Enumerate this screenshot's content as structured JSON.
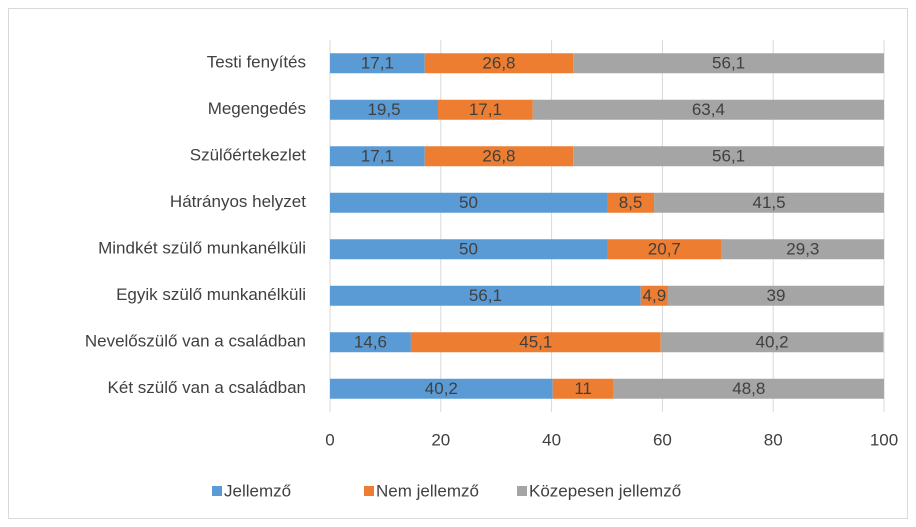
{
  "chart_data": {
    "type": "stacked_bar_horizontal",
    "categories": [
      "Testi fenyítés",
      "Megengedés",
      "Szülőértekezlet",
      "Hátrányos helyzet",
      "Mindkét szülő munkanélküli",
      "Egyik szülő munkanélküli",
      "Nevelőszülő van a családban",
      "Két szülő van a családban"
    ],
    "series": [
      {
        "name": "Jellemző",
        "color": "#5b9bd5",
        "values": [
          17.1,
          19.5,
          17.1,
          50,
          50,
          56.1,
          14.6,
          40.2
        ],
        "value_labels": [
          "17,1",
          "19,5",
          "17,1",
          "50",
          "50",
          "56,1",
          "14,6",
          "40,2"
        ]
      },
      {
        "name": "Nem jellemző",
        "color": "#ed7d31",
        "values": [
          26.8,
          17.1,
          26.8,
          8.5,
          20.7,
          4.9,
          45.1,
          11
        ],
        "value_labels": [
          "26,8",
          "17,1",
          "26,8",
          "8,5",
          "20,7",
          "4,9",
          "45,1",
          "11"
        ]
      },
      {
        "name": "Közepesen jellemző",
        "color": "#a5a5a5",
        "values": [
          56.1,
          63.4,
          56.1,
          41.5,
          29.3,
          39,
          40.2,
          48.8
        ],
        "value_labels": [
          "56,1",
          "63,4",
          "56,1",
          "41,5",
          "29,3",
          "39",
          "40,2",
          "48,8"
        ]
      }
    ],
    "xlim": [
      0,
      100
    ],
    "xticks": [
      0,
      20,
      40,
      60,
      80,
      100
    ],
    "grid": true,
    "legend": "bottom"
  }
}
